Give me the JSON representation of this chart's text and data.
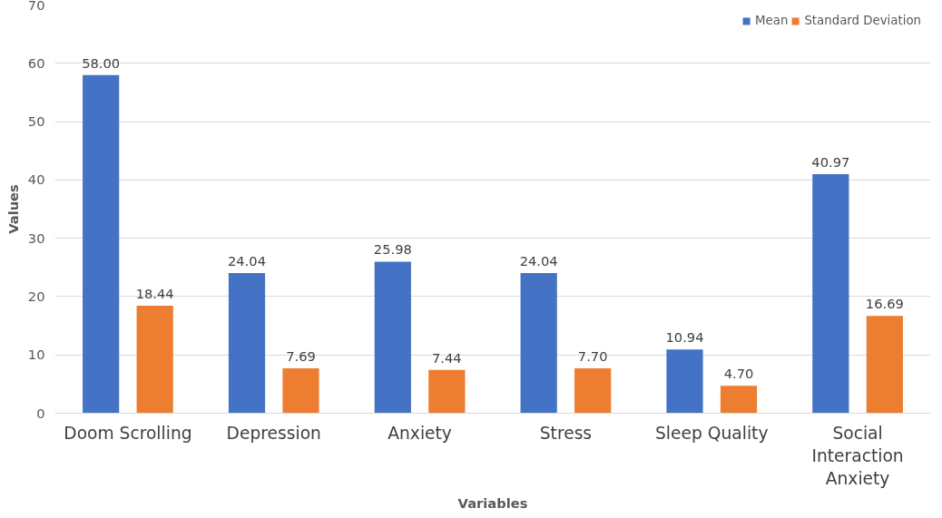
{
  "chart_data": {
    "type": "bar",
    "xlabel": "Variables",
    "ylabel": "Values",
    "categories": [
      "Doom Scrolling",
      "Depression",
      "Anxiety",
      "Stress",
      "Sleep Quality",
      "Social Interaction Anxiety"
    ],
    "series": [
      {
        "name": "Mean",
        "color": "#4472c4",
        "values": [
          58.0,
          24.04,
          25.98,
          24.04,
          10.94,
          40.97
        ],
        "value_labels": [
          "58.00",
          "24.04",
          "25.98",
          "24.04",
          "10.94",
          "40.97"
        ]
      },
      {
        "name": "Standard Deviation",
        "color": "#ed7d31",
        "values": [
          18.44,
          7.69,
          7.44,
          7.7,
          4.7,
          16.69
        ],
        "value_labels": [
          "18.44",
          "7.69",
          "7.44",
          "7.70",
          "4.70",
          "16.69"
        ]
      }
    ],
    "ylim": [
      0,
      70
    ],
    "yticks": [
      0,
      10,
      20,
      30,
      40,
      50,
      60,
      70
    ],
    "grid": "y",
    "legend": "top right"
  }
}
